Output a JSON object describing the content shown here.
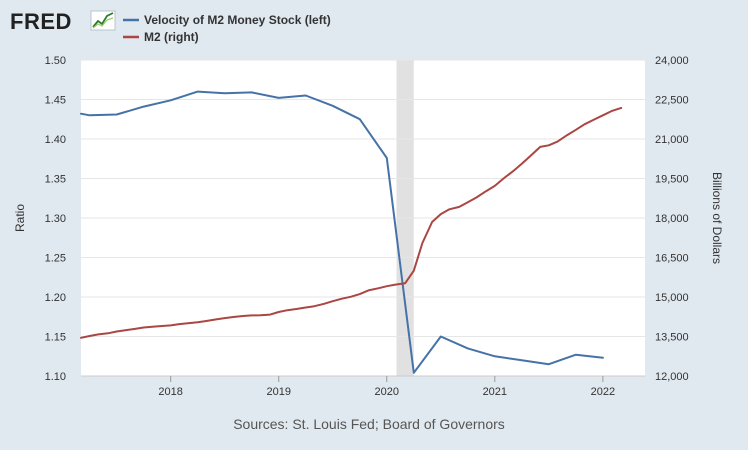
{
  "header": {
    "logo_text": "FRED",
    "logo_icon": "line-chart-icon"
  },
  "legend": [
    {
      "label": "Velocity of M2 Money Stock (left)",
      "color": "#4572a7"
    },
    {
      "label": "M2 (right)",
      "color": "#aa4643"
    }
  ],
  "footer": {
    "source": "Sources: St. Louis Fed; Board of Governors"
  },
  "colors": {
    "background": "#e1e9f0",
    "plot_background": "#ffffff",
    "gridline": "#e6e6e6",
    "recession_band": "#e1e1e1",
    "velocity": "#4572a7",
    "m2": "#aa4643"
  },
  "chart_data": {
    "type": "line",
    "title": "",
    "xlabel": "",
    "ylabel_left": "Ratio",
    "ylabel_right": "Billions of Dollars",
    "xlim": [
      2017.17,
      2022.39
    ],
    "x_ticks": [
      2018,
      2019,
      2020,
      2021,
      2022
    ],
    "x_tick_labels": [
      "2018",
      "2019",
      "2020",
      "2021",
      "2022"
    ],
    "ylim_left": [
      1.1,
      1.5
    ],
    "y_ticks_left": [
      1.1,
      1.15,
      1.2,
      1.25,
      1.3,
      1.35,
      1.4,
      1.45,
      1.5
    ],
    "y_tick_labels_left": [
      "1.10",
      "1.15",
      "1.20",
      "1.25",
      "1.30",
      "1.35",
      "1.40",
      "1.45",
      "1.50"
    ],
    "ylim_right": [
      12000,
      24000
    ],
    "y_ticks_right": [
      12000,
      13500,
      15000,
      16500,
      18000,
      19500,
      21000,
      22500,
      24000
    ],
    "y_tick_labels_right": [
      "12,000",
      "13,500",
      "15,000",
      "16,500",
      "18,000",
      "19,500",
      "21,000",
      "22,500",
      "24,000"
    ],
    "recession": {
      "start": 2020.09,
      "end": 2020.25
    },
    "grid": true,
    "series": [
      {
        "name": "Velocity of M2 Money Stock (left)",
        "axis": "left",
        "color": "#4572a7",
        "x": [
          2017.17,
          2017.25,
          2017.5,
          2017.75,
          2018.0,
          2018.25,
          2018.5,
          2018.75,
          2019.0,
          2019.25,
          2019.5,
          2019.75,
          2020.0,
          2020.25,
          2020.5,
          2020.75,
          2021.0,
          2021.25,
          2021.5,
          2021.75,
          2022.0
        ],
        "y": [
          1.432,
          1.43,
          1.431,
          1.441,
          1.449,
          1.46,
          1.458,
          1.459,
          1.452,
          1.455,
          1.442,
          1.425,
          1.376,
          1.104,
          1.15,
          1.135,
          1.125,
          1.12,
          1.115,
          1.127,
          1.123
        ]
      },
      {
        "name": "M2 (right)",
        "axis": "right",
        "color": "#aa4643",
        "x": [
          2017.17,
          2017.25,
          2017.33,
          2017.42,
          2017.5,
          2017.58,
          2017.67,
          2017.75,
          2017.83,
          2017.92,
          2018.0,
          2018.08,
          2018.17,
          2018.25,
          2018.33,
          2018.42,
          2018.5,
          2018.58,
          2018.67,
          2018.75,
          2018.83,
          2018.92,
          2019.0,
          2019.08,
          2019.17,
          2019.25,
          2019.33,
          2019.42,
          2019.5,
          2019.58,
          2019.67,
          2019.75,
          2019.83,
          2019.92,
          2020.0,
          2020.08,
          2020.17,
          2020.25,
          2020.33,
          2020.42,
          2020.5,
          2020.58,
          2020.67,
          2020.75,
          2020.83,
          2020.92,
          2021.0,
          2021.08,
          2021.17,
          2021.25,
          2021.33,
          2021.42,
          2021.5,
          2021.58,
          2021.67,
          2021.75,
          2021.83,
          2021.92,
          2022.0,
          2022.08,
          2022.17
        ],
        "y": [
          13450,
          13520,
          13580,
          13620,
          13690,
          13740,
          13790,
          13840,
          13870,
          13900,
          13920,
          13970,
          14010,
          14040,
          14090,
          14150,
          14200,
          14240,
          14280,
          14300,
          14310,
          14330,
          14430,
          14500,
          14550,
          14600,
          14650,
          14740,
          14840,
          14930,
          15010,
          15110,
          15250,
          15330,
          15410,
          15470,
          15520,
          16000,
          17050,
          17850,
          18150,
          18330,
          18420,
          18600,
          18780,
          19020,
          19220,
          19500,
          19780,
          20060,
          20360,
          20700,
          20760,
          20900,
          21150,
          21350,
          21560,
          21740,
          21900,
          22060,
          22180
        ]
      }
    ]
  }
}
